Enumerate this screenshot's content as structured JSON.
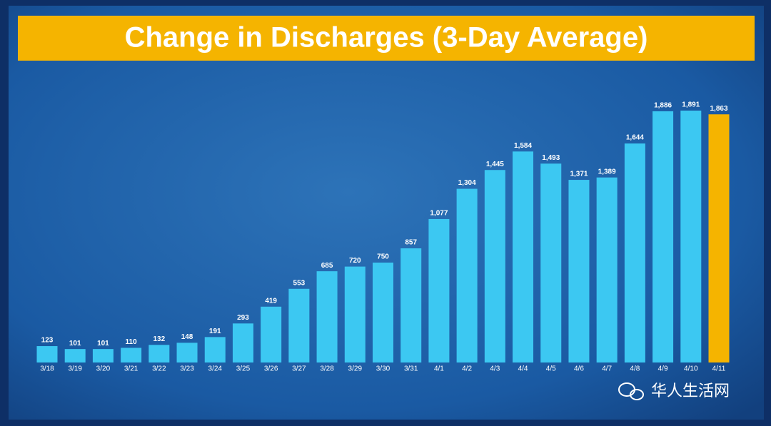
{
  "chart_data": {
    "type": "bar",
    "title": "Change in Discharges (3-Day Average)",
    "categories": [
      "3/18",
      "3/19",
      "3/20",
      "3/21",
      "3/22",
      "3/23",
      "3/24",
      "3/25",
      "3/26",
      "3/27",
      "3/28",
      "3/29",
      "3/30",
      "3/31",
      "4/1",
      "4/2",
      "4/3",
      "4/4",
      "4/5",
      "4/6",
      "4/7",
      "4/8",
      "4/9",
      "4/10",
      "4/11"
    ],
    "values": [
      123,
      101,
      101,
      110,
      132,
      148,
      191,
      293,
      419,
      553,
      685,
      720,
      750,
      857,
      1077,
      1304,
      1445,
      1584,
      1493,
      1371,
      1389,
      1644,
      1886,
      1891,
      1863
    ],
    "value_labels": [
      "123",
      "101",
      "101",
      "110",
      "132",
      "148",
      "191",
      "293",
      "419",
      "553",
      "685",
      "720",
      "750",
      "857",
      "1,077",
      "1,304",
      "1,445",
      "1,584",
      "1,493",
      "1,371",
      "1,389",
      "1,644",
      "1,886",
      "1,891",
      "1,863"
    ],
    "colors": [
      "#3cc8f2",
      "#3cc8f2",
      "#3cc8f2",
      "#3cc8f2",
      "#3cc8f2",
      "#3cc8f2",
      "#3cc8f2",
      "#3cc8f2",
      "#3cc8f2",
      "#3cc8f2",
      "#3cc8f2",
      "#3cc8f2",
      "#3cc8f2",
      "#3cc8f2",
      "#3cc8f2",
      "#3cc8f2",
      "#3cc8f2",
      "#3cc8f2",
      "#3cc8f2",
      "#3cc8f2",
      "#3cc8f2",
      "#3cc8f2",
      "#3cc8f2",
      "#3cc8f2",
      "#f5b400"
    ],
    "watermark": "华人生活网"
  }
}
